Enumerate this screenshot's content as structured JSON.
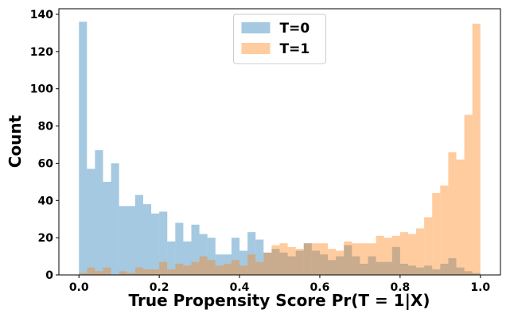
{
  "chart_data": {
    "type": "histogram",
    "x_label": "True Propensity Score Pr(T = 1|X)",
    "y_label": "Count",
    "bins": [
      0,
      0.02,
      0.04,
      0.06,
      0.08,
      0.1,
      0.12,
      0.14,
      0.16,
      0.18,
      0.2,
      0.22,
      0.24,
      0.26,
      0.28,
      0.3,
      0.32,
      0.34,
      0.36,
      0.38,
      0.4,
      0.42,
      0.44,
      0.46,
      0.48,
      0.5,
      0.52,
      0.54,
      0.56,
      0.58,
      0.6,
      0.62,
      0.64,
      0.66,
      0.68,
      0.7,
      0.72,
      0.74,
      0.76,
      0.78,
      0.8,
      0.82,
      0.84,
      0.86,
      0.88,
      0.9,
      0.92,
      0.94,
      0.96,
      0.98,
      1
    ],
    "series": [
      {
        "name": "T=0",
        "color": "#1f77b4",
        "values": [
          136,
          57,
          67,
          50,
          60,
          37,
          37,
          43,
          38,
          33,
          34,
          18,
          28,
          18,
          27,
          22,
          20,
          11,
          11,
          20,
          13,
          23,
          19,
          12,
          14,
          12,
          10,
          13,
          17,
          13,
          11,
          8,
          10,
          16,
          10,
          6,
          10,
          7,
          7,
          15,
          6,
          5,
          4,
          5,
          3,
          6,
          9,
          4,
          2,
          1
        ]
      },
      {
        "name": "T=1",
        "color": "#ff7f0e",
        "values": [
          1,
          4,
          2,
          4,
          0,
          2,
          1,
          4,
          3,
          3,
          7,
          3,
          6,
          5,
          7,
          10,
          8,
          5,
          6,
          8,
          5,
          11,
          7,
          12,
          16,
          17,
          15,
          14,
          17,
          17,
          17,
          14,
          13,
          18,
          17,
          17,
          17,
          21,
          20,
          21,
          23,
          22,
          25,
          31,
          44,
          48,
          66,
          62,
          86,
          135
        ]
      }
    ],
    "xlim": [
      -0.05,
      1.05
    ],
    "ylim": [
      0,
      143
    ],
    "xticks": [
      {
        "value": 0,
        "label": "0.0"
      },
      0.2,
      0.4,
      0.6,
      0.8,
      {
        "value": 1,
        "label": "1.0"
      }
    ],
    "yticks": [
      0,
      20,
      40,
      60,
      80,
      100,
      120,
      140
    ],
    "legend": "upper center"
  }
}
